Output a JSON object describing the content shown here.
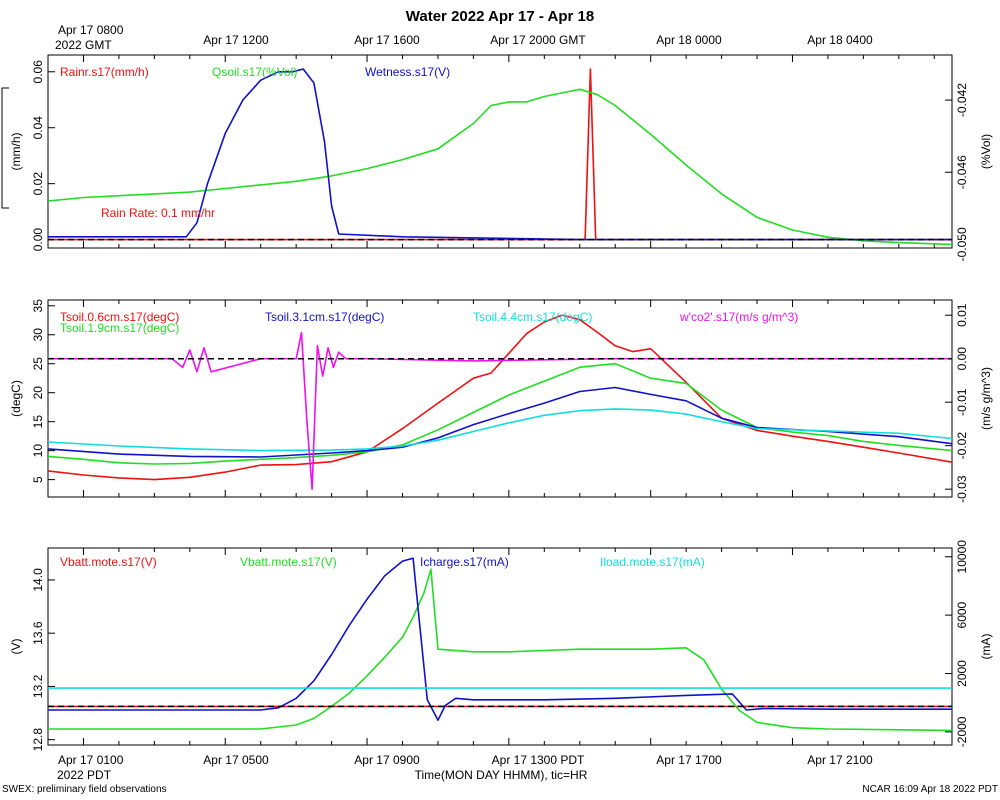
{
  "title": "Water 2022 Apr 17 - Apr 18",
  "footer_left": "SWEX: preliminary field observations",
  "footer_right": "NCAR 16:09 Apr 18 2022 PDT",
  "x_axis_label": "Time(MON DAY HHMM), tic=HR",
  "top_axis": {
    "first_line1": "Apr 17 0800",
    "first_line2": "2022 GMT",
    "ticks": [
      "Apr 17 1200",
      "Apr 17 1600",
      "Apr 17 2000 GMT",
      "Apr 18 0000",
      "Apr 18 0400"
    ]
  },
  "bottom_axis": {
    "first_line1": "Apr 17 0100",
    "first_line2": "2022 PDT",
    "ticks": [
      "Apr 17 0500",
      "Apr 17 0900",
      "Apr 17 1300 PDT",
      "Apr 17 1700",
      "Apr 17 2100"
    ]
  },
  "chart_data": [
    {
      "type": "line",
      "panel": "water",
      "x_unit": "hours since Apr 17 0000 PDT",
      "xlim": [
        0.0,
        25.5
      ],
      "ylabel_left": "(mm/h)",
      "ylim_left": [
        -0.003,
        0.066
      ],
      "yticks_left": [
        0.0,
        0.02,
        0.04,
        0.06
      ],
      "yticklabels_left": [
        "0.00",
        "0.02",
        "0.04",
        "0.06"
      ],
      "ylabel_right": "(%Vol)",
      "ylim_right": [
        -0.0502,
        -0.0395
      ],
      "yticks_right": [
        -0.05,
        -0.046,
        -0.042
      ],
      "yticklabels_right": [
        "-0.050",
        "-0.046",
        "-0.042"
      ],
      "annotation": "Rain Rate: 0.1 mm/hr",
      "reference_lines": [
        {
          "axis": "left",
          "y": 0.0,
          "color": "#000000"
        }
      ],
      "series": [
        {
          "name": "Rainr.s17(mm/h)",
          "axis": "left",
          "color": "#ee1111",
          "x": [
            0,
            15.0,
            15.15,
            15.3,
            15.45,
            15.6,
            25.5
          ],
          "y": [
            0.0,
            0.0,
            0.0,
            0.061,
            0.0,
            0.0,
            0.0
          ]
        },
        {
          "name": "Qsoil.s17(%Vol)",
          "axis": "right",
          "color": "#22dd22",
          "x": [
            0,
            1,
            2,
            3,
            4,
            5,
            6,
            7,
            8,
            9,
            10,
            11,
            12,
            12.5,
            13,
            13.5,
            14,
            14.5,
            15,
            15.5,
            16,
            16.5,
            17,
            18,
            19,
            20,
            21,
            22,
            23,
            24,
            25.5
          ],
          "y": [
            -0.0476,
            -0.0474,
            -0.0473,
            -0.0472,
            -0.0471,
            -0.0469,
            -0.0467,
            -0.0465,
            -0.0462,
            -0.0458,
            -0.0453,
            -0.0447,
            -0.0433,
            -0.0423,
            -0.0421,
            -0.0421,
            -0.0418,
            -0.0416,
            -0.0414,
            -0.0417,
            -0.0423,
            -0.0431,
            -0.0439,
            -0.0456,
            -0.0472,
            -0.0485,
            -0.0492,
            -0.0496,
            -0.0498,
            -0.0499,
            -0.05
          ]
        },
        {
          "name": "Wetness.s17(V)",
          "axis": "left",
          "color": "#1111cc",
          "x": [
            0,
            3,
            3.9,
            4.2,
            4.5,
            5,
            5.5,
            6,
            6.5,
            6.9,
            7.2,
            7.5,
            7.8,
            8.0,
            8.2,
            10,
            15,
            20,
            25.5
          ],
          "y": [
            0.001,
            0.001,
            0.001,
            0.006,
            0.02,
            0.038,
            0.05,
            0.057,
            0.06,
            0.06,
            0.061,
            0.056,
            0.035,
            0.012,
            0.002,
            0.001,
            0.0,
            0.0,
            0.0
          ]
        }
      ]
    },
    {
      "type": "line",
      "panel": "soil-temperature",
      "x_unit": "hours since Apr 17 0000 PDT",
      "xlim": [
        0.0,
        25.5
      ],
      "ylabel_left": "(degC)",
      "ylim_left": [
        2.0,
        36.0
      ],
      "yticks_left": [
        5,
        10,
        15,
        20,
        25,
        30,
        35
      ],
      "yticklabels_left": [
        "5",
        "10",
        "15",
        "20",
        "25",
        "30",
        "35"
      ],
      "ylabel_right": "(m/s g/m^3)",
      "ylim_right": [
        -0.0318,
        0.0135
      ],
      "yticks_right": [
        -0.03,
        -0.02,
        -0.01,
        0.0,
        0.01
      ],
      "yticklabels_right": [
        "-0.03",
        "-0.02",
        "-0.01",
        "0.00",
        "0.01"
      ],
      "reference_lines": [
        {
          "axis": "right",
          "y": 0.0,
          "color": "#000000"
        }
      ],
      "series": [
        {
          "name": "Tsoil.0.6cm.s17(degC)",
          "axis": "left",
          "color": "#ee1111",
          "x": [
            0,
            1,
            2,
            3,
            4,
            5,
            6,
            7,
            8,
            9,
            10,
            11,
            12,
            12.5,
            13,
            13.5,
            14,
            14.5,
            15,
            15.5,
            16,
            16.5,
            17,
            18,
            19,
            20,
            21,
            22,
            23,
            24,
            25.5
          ],
          "y": [
            6.5,
            5.8,
            5.3,
            5.0,
            5.4,
            6.3,
            7.5,
            7.6,
            8.1,
            9.8,
            13.8,
            18.2,
            22.5,
            23.4,
            26.8,
            30.2,
            32.2,
            33.4,
            32.6,
            30.4,
            28.1,
            27.1,
            27.6,
            21.8,
            15.6,
            13.5,
            12.5,
            11.6,
            10.6,
            9.6,
            8.0
          ]
        },
        {
          "name": "Tsoil.1.9cm.s17(degC)",
          "axis": "left",
          "color": "#22dd22",
          "x": [
            0,
            1,
            2,
            3,
            4,
            5,
            6,
            7,
            8,
            9,
            10,
            11,
            12,
            13,
            14,
            15,
            16,
            17,
            18,
            19,
            20,
            21,
            22,
            23,
            24,
            25.5
          ],
          "y": [
            9.0,
            8.5,
            7.9,
            7.7,
            7.8,
            8.2,
            8.5,
            8.8,
            9.2,
            9.8,
            11.0,
            13.6,
            16.6,
            19.6,
            22.0,
            24.4,
            25.0,
            22.5,
            21.6,
            17.0,
            14.0,
            13.2,
            12.6,
            11.6,
            10.9,
            10.0
          ]
        },
        {
          "name": "Tsoil.3.1cm.s17(degC)",
          "axis": "left",
          "color": "#1111cc",
          "x": [
            0,
            2,
            4,
            6,
            8,
            9,
            10,
            11,
            12,
            13,
            14,
            15,
            16,
            17,
            18,
            19,
            20,
            22,
            24,
            25.5
          ],
          "y": [
            10.3,
            9.4,
            9.0,
            8.9,
            9.6,
            10.0,
            10.6,
            12.2,
            14.5,
            16.4,
            18.2,
            20.2,
            20.9,
            19.7,
            18.6,
            15.6,
            14.0,
            13.3,
            12.4,
            11.2
          ]
        },
        {
          "name": "Tsoil.4.4cm.s17(degC)",
          "axis": "left",
          "color": "#11dddd",
          "x": [
            0,
            2,
            4,
            6,
            8,
            9,
            10,
            11,
            12,
            13,
            14,
            15,
            16,
            17,
            18,
            19,
            20,
            22,
            24,
            25.5
          ],
          "y": [
            11.5,
            10.8,
            10.3,
            10.0,
            10.1,
            10.3,
            10.8,
            11.8,
            13.3,
            14.8,
            16.1,
            16.9,
            17.2,
            17.0,
            16.3,
            15.0,
            13.8,
            13.4,
            13.0,
            12.1
          ]
        },
        {
          "name": "w'co2'.s17(m/s g/m^3)",
          "axis": "right",
          "color": "#ee11ee",
          "x": [
            0,
            3.5,
            3.8,
            4.0,
            4.2,
            4.4,
            4.6,
            6.0,
            7.0,
            7.15,
            7.3,
            7.45,
            7.6,
            7.75,
            7.9,
            8.05,
            8.2,
            8.4,
            9.0,
            12,
            16,
            20,
            24,
            25.5
          ],
          "y": [
            0.0,
            0.0,
            -0.002,
            0.002,
            -0.003,
            0.0025,
            -0.003,
            0.0,
            0.0,
            0.006,
            -0.014,
            -0.03,
            0.003,
            -0.004,
            0.0025,
            -0.002,
            0.0015,
            0.0,
            0.0,
            -0.0005,
            0.0,
            0.0,
            0.0,
            0.0
          ]
        }
      ]
    },
    {
      "type": "line",
      "panel": "mote-power",
      "x_unit": "hours since Apr 17 0000 PDT",
      "xlim": [
        0.0,
        25.5
      ],
      "ylabel_left": "(V)",
      "ylim_left": [
        12.76,
        14.24
      ],
      "yticks_left": [
        12.8,
        13.2,
        13.6,
        14.0
      ],
      "yticklabels_left": [
        "12.8",
        "13.2",
        "13.6",
        "14.0"
      ],
      "ylabel_right": "(mA)",
      "ylim_right": [
        -2900,
        10600
      ],
      "yticks_right": [
        -2000,
        2000,
        6000,
        10000
      ],
      "yticklabels_right": [
        "-2000",
        "2000",
        "6000",
        "10000"
      ],
      "reference_lines": [
        {
          "axis": "left",
          "y": 13.05,
          "color": "#000000"
        }
      ],
      "series": [
        {
          "name": "Vbatt.mote.s17(V)",
          "axis": "left",
          "color": "#ee1111",
          "x": [
            0,
            25.5
          ],
          "y": [
            13.05,
            13.05
          ]
        },
        {
          "name": "Vbatt.mote.s17(V)",
          "axis": "left",
          "color": "#22dd22",
          "x": [
            0,
            1.5,
            3,
            4.5,
            6,
            7,
            7.5,
            8,
            8.5,
            9,
            9.5,
            10,
            10.3,
            10.6,
            10.8,
            11,
            12,
            13,
            14,
            15,
            16,
            17,
            18,
            18.5,
            19,
            19.5,
            20,
            21,
            22,
            25.5
          ],
          "y": [
            12.88,
            12.88,
            12.88,
            12.88,
            12.88,
            12.91,
            12.96,
            13.05,
            13.15,
            13.28,
            13.42,
            13.57,
            13.72,
            13.9,
            14.08,
            13.48,
            13.46,
            13.46,
            13.47,
            13.48,
            13.48,
            13.48,
            13.49,
            13.4,
            13.18,
            13.02,
            12.93,
            12.89,
            12.88,
            12.87
          ]
        },
        {
          "name": "Icharge.s17(mA)",
          "axis": "right",
          "color": "#1111cc",
          "x": [
            0,
            2,
            4,
            6,
            6.5,
            7,
            7.5,
            8,
            8.5,
            9,
            9.5,
            10,
            10.3,
            10.5,
            10.7,
            11.0,
            11.2,
            11.5,
            12,
            14,
            16,
            18,
            19.3,
            19.7,
            20.2,
            22,
            25.5
          ],
          "y": [
            -500,
            -500,
            -500,
            -500,
            -350,
            300,
            1500,
            3300,
            5300,
            7100,
            8700,
            9700,
            9900,
            5000,
            200,
            -1200,
            -200,
            300,
            200,
            200,
            300,
            500,
            600,
            -500,
            -400,
            -450,
            -450
          ]
        },
        {
          "name": "Iload.mote.s17(mA)",
          "axis": "right",
          "color": "#11dddd",
          "x": [
            0,
            25.5
          ],
          "y": [
            1000,
            1000
          ]
        }
      ]
    }
  ]
}
